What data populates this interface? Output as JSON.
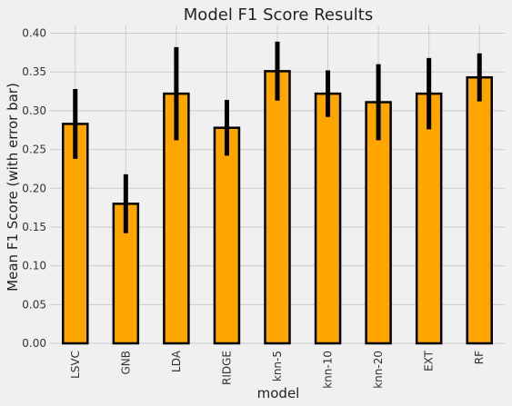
{
  "chart_data": {
    "type": "bar",
    "title": "Model F1 Score Results",
    "xlabel": "model",
    "ylabel": "Mean F1 Score (with error bar)",
    "categories": [
      "LSVC",
      "GNB",
      "LDA",
      "RIDGE",
      "knn-5",
      "knn-10",
      "knn-20",
      "EXT",
      "RF"
    ],
    "values": [
      0.283,
      0.18,
      0.322,
      0.278,
      0.351,
      0.322,
      0.311,
      0.322,
      0.343
    ],
    "errors": [
      0.045,
      0.038,
      0.06,
      0.036,
      0.038,
      0.03,
      0.049,
      0.046,
      0.031
    ],
    "ylim": [
      0,
      0.41
    ],
    "yticks": [
      0.0,
      0.05,
      0.1,
      0.15,
      0.2,
      0.25,
      0.3,
      0.35,
      0.4
    ],
    "ytick_labels": [
      "0.00",
      "0.05",
      "0.10",
      "0.15",
      "0.20",
      "0.25",
      "0.30",
      "0.35",
      "0.40"
    ],
    "grid": true,
    "colors": {
      "bar_fill": "#ffa500",
      "bar_edge": "#000000",
      "error_bar": "#000000",
      "grid": "#cbcbcb",
      "background": "#f0f0f0"
    }
  }
}
